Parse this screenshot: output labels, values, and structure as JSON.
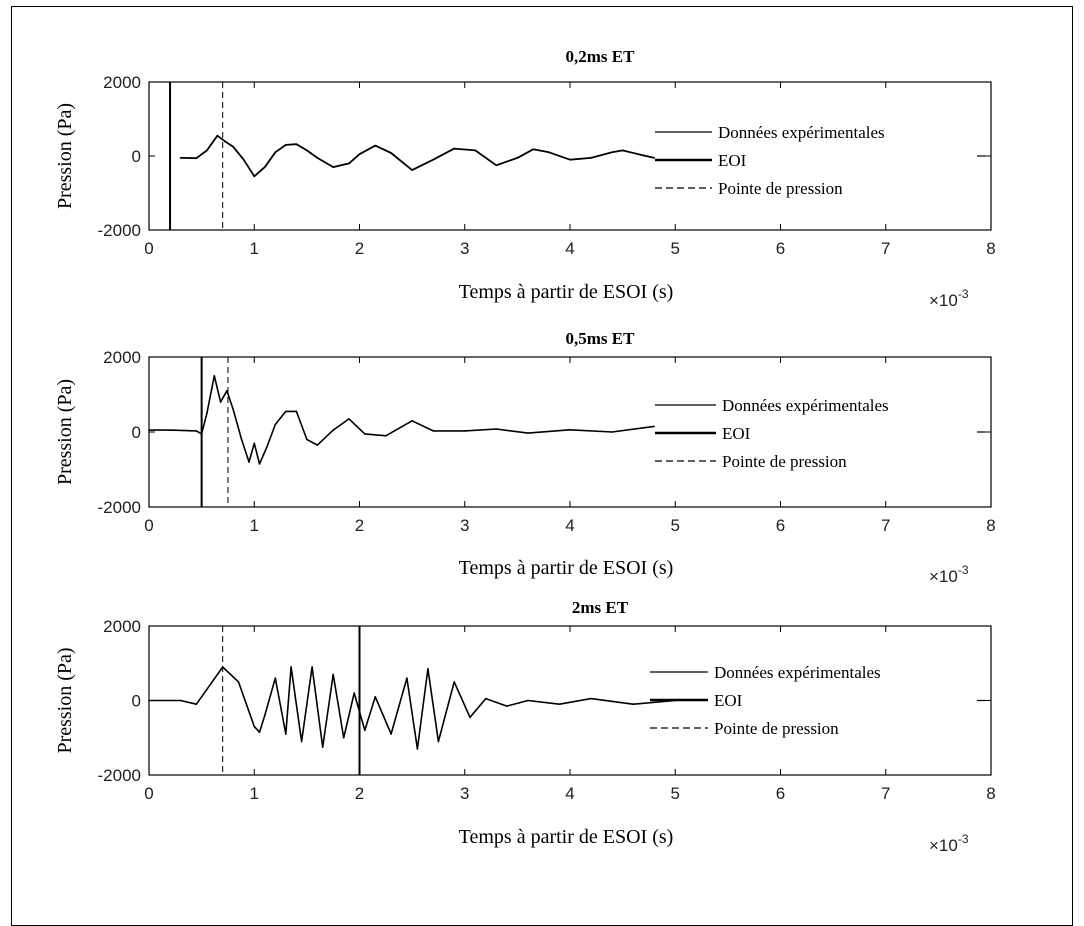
{
  "figure": {
    "x_axis": {
      "label": "Temps à partir de ESOI (s)",
      "ticks": [
        "0",
        "1",
        "2",
        "3",
        "4",
        "5",
        "6",
        "7",
        "8"
      ],
      "multiplier": "×10",
      "exponent": "-3",
      "range": [
        0,
        8
      ]
    },
    "y_axis": {
      "label": "Pression (Pa)",
      "ticks": [
        "-2000",
        "0",
        "2000"
      ],
      "range": [
        -2000,
        2000
      ]
    },
    "legend_entries": [
      "Données expérimentales",
      "EOI",
      "Pointe de pression"
    ]
  },
  "chart_data": [
    {
      "type": "line",
      "title": "0,2ms ET",
      "xlabel": "Temps à partir de ESOI (s)",
      "ylabel": "Pression (Pa)",
      "x_scale": "×10^-3",
      "xlim": [
        0,
        8
      ],
      "ylim": [
        -2000,
        2000
      ],
      "grid": false,
      "legend_position": "right",
      "markers": {
        "EOI_x": 0.2,
        "pressure_peak_x": 0.7
      },
      "series": [
        {
          "name": "Données expérimentales",
          "x": [
            0.3,
            0.45,
            0.55,
            0.65,
            0.72,
            0.8,
            0.9,
            1.0,
            1.1,
            1.2,
            1.3,
            1.4,
            1.5,
            1.6,
            1.75,
            1.9,
            2.0,
            2.15,
            2.3,
            2.5,
            2.7,
            2.9,
            3.1,
            3.3,
            3.5,
            3.65,
            3.8,
            4.0,
            4.2,
            4.4,
            4.5,
            4.65,
            4.8
          ],
          "y": [
            -50,
            -60,
            150,
            550,
            400,
            250,
            -100,
            -550,
            -300,
            100,
            300,
            320,
            150,
            -50,
            -300,
            -200,
            50,
            280,
            80,
            -380,
            -100,
            200,
            150,
            -250,
            -50,
            180,
            100,
            -100,
            -50,
            100,
            150,
            50,
            -50
          ]
        }
      ]
    },
    {
      "type": "line",
      "title": "0,5ms ET",
      "xlabel": "Temps à partir de ESOI (s)",
      "ylabel": "Pression (Pa)",
      "x_scale": "×10^-3",
      "xlim": [
        0,
        8
      ],
      "ylim": [
        -2000,
        2000
      ],
      "grid": false,
      "legend_position": "right",
      "markers": {
        "EOI_x": 0.5,
        "pressure_peak_x": 0.75
      },
      "series": [
        {
          "name": "Données expérimentales",
          "x": [
            0.0,
            0.2,
            0.45,
            0.5,
            0.55,
            0.62,
            0.68,
            0.74,
            0.8,
            0.88,
            0.95,
            1.0,
            1.05,
            1.12,
            1.2,
            1.3,
            1.4,
            1.5,
            1.6,
            1.75,
            1.9,
            2.05,
            2.25,
            2.5,
            2.7,
            3.0,
            3.3,
            3.6,
            4.0,
            4.4,
            4.8
          ],
          "y": [
            50,
            50,
            30,
            -50,
            500,
            1500,
            800,
            1100,
            600,
            -200,
            -800,
            -300,
            -850,
            -400,
            200,
            550,
            550,
            -200,
            -350,
            50,
            350,
            -50,
            -100,
            300,
            30,
            30,
            80,
            -30,
            60,
            0,
            150
          ]
        }
      ]
    },
    {
      "type": "line",
      "title": "2ms ET",
      "xlabel": "Temps à partir de ESOI (s)",
      "ylabel": "Pression (Pa)",
      "x_scale": "×10^-3",
      "xlim": [
        0,
        8
      ],
      "ylim": [
        -2000,
        2000
      ],
      "grid": false,
      "legend_position": "right",
      "markers": {
        "EOI_x": 2.0,
        "pressure_peak_x": 0.7
      },
      "series": [
        {
          "name": "Données expérimentales",
          "x": [
            0.0,
            0.3,
            0.45,
            0.55,
            0.7,
            0.85,
            1.0,
            1.05,
            1.1,
            1.2,
            1.3,
            1.35,
            1.45,
            1.55,
            1.65,
            1.75,
            1.85,
            1.95,
            2.05,
            2.15,
            2.3,
            2.45,
            2.55,
            2.65,
            2.75,
            2.9,
            3.05,
            3.2,
            3.4,
            3.6,
            3.9,
            4.2,
            4.6,
            5.0
          ],
          "y": [
            0,
            0,
            -100,
            300,
            900,
            500,
            -700,
            -850,
            -400,
            600,
            -900,
            900,
            -1100,
            900,
            -1250,
            700,
            -1000,
            200,
            -800,
            100,
            -900,
            600,
            -1300,
            850,
            -1100,
            500,
            -450,
            50,
            -150,
            0,
            -100,
            50,
            -100,
            0
          ]
        }
      ]
    }
  ]
}
